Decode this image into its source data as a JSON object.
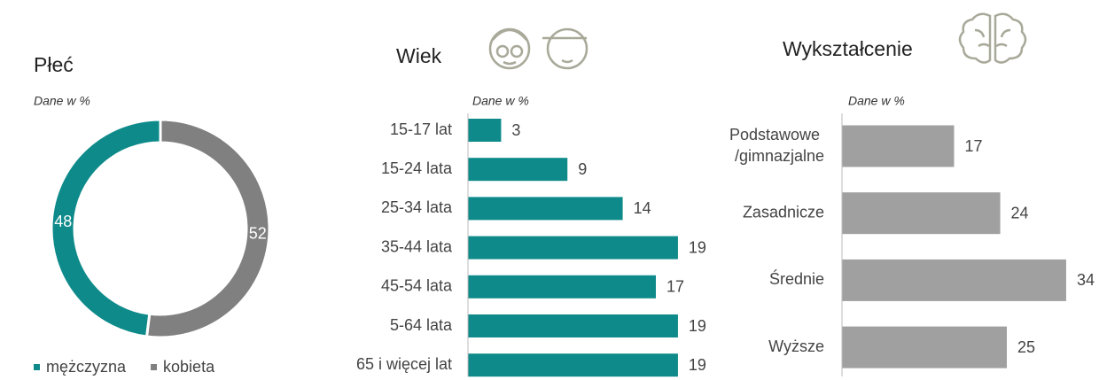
{
  "chart_data": [
    {
      "type": "donut",
      "title": "Płeć",
      "subtitle": "Dane w %",
      "categories": [
        "mężczyzna",
        "kobieta"
      ],
      "values": [
        48,
        52
      ],
      "colors": [
        "#0e8a8a",
        "#808080"
      ],
      "legend": "bottom"
    },
    {
      "type": "hbar",
      "title": "Wiek",
      "subtitle": "Dane w %",
      "categories": [
        "15-17 lat",
        "15-24 lata",
        "25-34 lata",
        "35-44 lata",
        "45-54 lata",
        "5-64 lata",
        "65 i więcej lat"
      ],
      "values": [
        3,
        9,
        14,
        19,
        17,
        19,
        19
      ],
      "color": "#0e8a8a"
    },
    {
      "type": "hbar",
      "title": "Wykształcenie",
      "subtitle": "Dane w %",
      "categories": [
        "Podstawowe /gimnazjalne",
        "Zasadnicze",
        "Średnie",
        "Wyższe"
      ],
      "values": [
        17,
        24,
        34,
        25
      ],
      "color": "#a0a0a0"
    }
  ]
}
